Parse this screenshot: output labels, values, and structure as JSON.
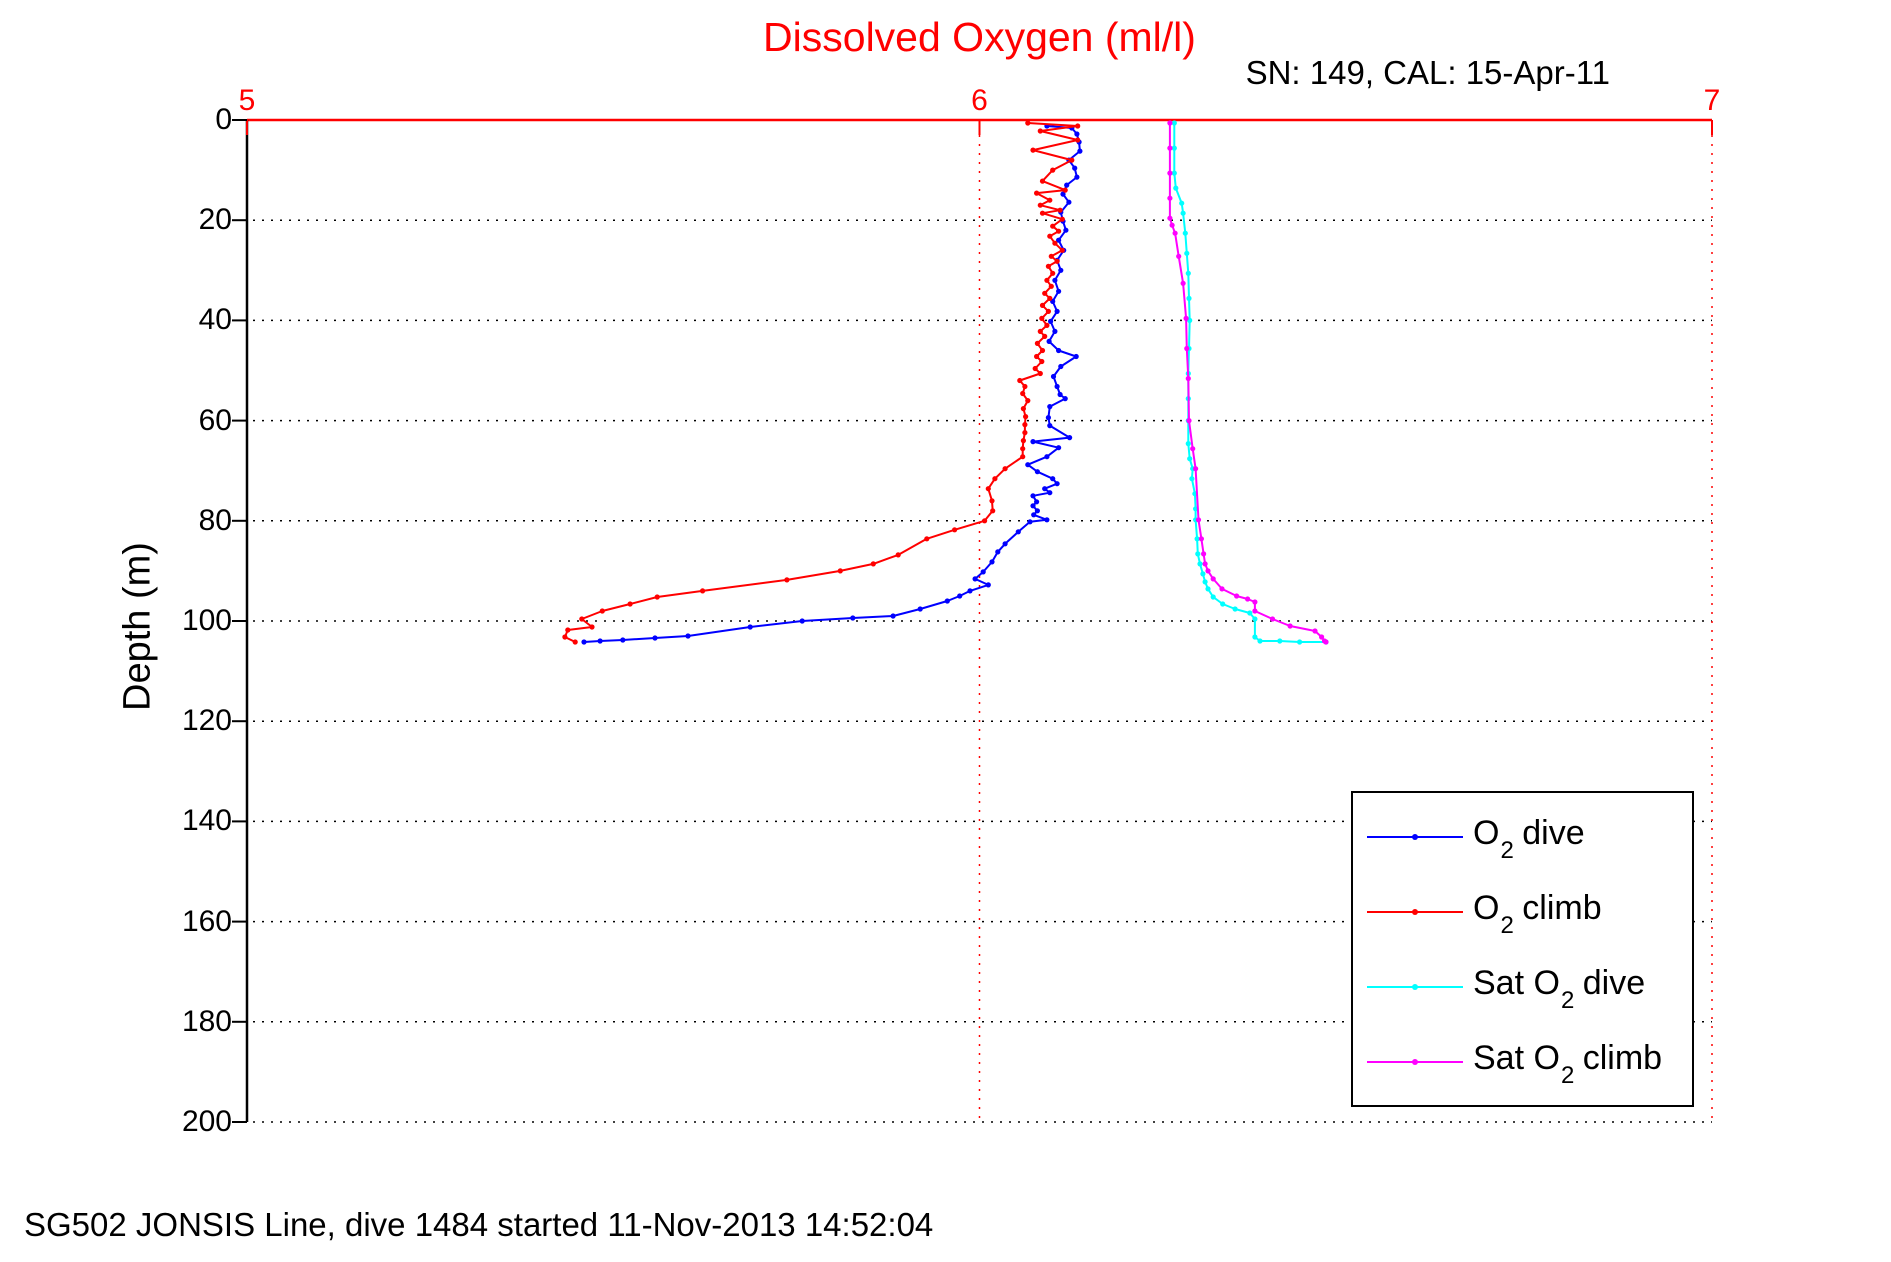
{
  "figure": {
    "title": "Dissolved Oxygen (ml/l)",
    "subtitle": "SN: 149, CAL: 15-Apr-11",
    "footer": "SG502 JONSIS Line, dive 1484 started 11-Nov-2013 14:52:04",
    "title_color": "#ff0000",
    "background": "#ffffff"
  },
  "chart_data": {
    "type": "line",
    "title": "Dissolved Oxygen (ml/l)",
    "subtitle": "SN: 149, CAL: 15-Apr-11",
    "footer": "SG502 JONSIS Line, dive 1484 started 11-Nov-2013 14:52:04",
    "xlabel": "Dissolved Oxygen (ml/l)",
    "ylabel": "Depth (m)",
    "x_axis": {
      "min": 5,
      "max": 7,
      "ticks": [
        "5",
        "6",
        "7"
      ],
      "tick_values": [
        5,
        6,
        7
      ],
      "position": "top",
      "color": "#ff0000",
      "grid": "dotted"
    },
    "y_axis": {
      "min": 0,
      "max": 200,
      "ticks": [
        "0",
        "20",
        "40",
        "60",
        "80",
        "100",
        "120",
        "140",
        "160",
        "180",
        "200"
      ],
      "tick_values": [
        0,
        20,
        40,
        60,
        80,
        100,
        120,
        140,
        160,
        180,
        200
      ],
      "direction": "down",
      "position": "left",
      "color": "#000000",
      "grid": "dotted"
    },
    "legend_position": "bottom-right",
    "series": [
      {
        "name": "O2 dive",
        "color": "#0000ff",
        "marker": "dot",
        "points": [
          [
            6.092,
            1.2
          ],
          [
            6.126,
            1.6
          ],
          [
            6.133,
            2.8
          ],
          [
            6.136,
            4.4
          ],
          [
            6.137,
            6.2
          ],
          [
            6.122,
            8.0
          ],
          [
            6.13,
            9.6
          ],
          [
            6.133,
            11.4
          ],
          [
            6.119,
            13.0
          ],
          [
            6.114,
            14.8
          ],
          [
            6.122,
            16.4
          ],
          [
            6.111,
            18.4
          ],
          [
            6.114,
            20.2
          ],
          [
            6.118,
            22.0
          ],
          [
            6.108,
            24.0
          ],
          [
            6.115,
            26.0
          ],
          [
            6.106,
            28.0
          ],
          [
            6.111,
            30.0
          ],
          [
            6.103,
            32.0
          ],
          [
            6.108,
            34.2
          ],
          [
            6.1,
            36.2
          ],
          [
            6.106,
            38.2
          ],
          [
            6.097,
            40.2
          ],
          [
            6.103,
            42.2
          ],
          [
            6.095,
            44.2
          ],
          [
            6.108,
            46.0
          ],
          [
            6.132,
            47.2
          ],
          [
            6.111,
            49.2
          ],
          [
            6.101,
            51.2
          ],
          [
            6.106,
            53.2
          ],
          [
            6.11,
            54.8
          ],
          [
            6.117,
            55.6
          ],
          [
            6.096,
            57.2
          ],
          [
            6.094,
            59.4
          ],
          [
            6.096,
            61.0
          ],
          [
            6.123,
            63.4
          ],
          [
            6.073,
            64.2
          ],
          [
            6.108,
            65.4
          ],
          [
            6.092,
            67.2
          ],
          [
            6.066,
            68.8
          ],
          [
            6.079,
            70.2
          ],
          [
            6.1,
            71.6
          ],
          [
            6.106,
            72.6
          ],
          [
            6.089,
            73.6
          ],
          [
            6.096,
            74.4
          ],
          [
            6.073,
            75.0
          ],
          [
            6.078,
            76.2
          ],
          [
            6.073,
            77.0
          ],
          [
            6.079,
            78.0
          ],
          [
            6.074,
            78.8
          ],
          [
            6.092,
            79.8
          ],
          [
            6.069,
            80.2
          ],
          [
            6.053,
            82.2
          ],
          [
            6.035,
            84.6
          ],
          [
            6.025,
            86.2
          ],
          [
            6.017,
            88.2
          ],
          [
            6.005,
            90.2
          ],
          [
            5.994,
            91.6
          ],
          [
            6.012,
            92.8
          ],
          [
            5.987,
            94.0
          ],
          [
            5.973,
            95.0
          ],
          [
            5.956,
            96.0
          ],
          [
            5.919,
            97.6
          ],
          [
            5.882,
            99.0
          ],
          [
            5.827,
            99.4
          ],
          [
            5.758,
            100.0
          ],
          [
            5.687,
            101.2
          ],
          [
            5.602,
            103.0
          ],
          [
            5.557,
            103.4
          ],
          [
            5.513,
            103.8
          ],
          [
            5.482,
            104.0
          ],
          [
            5.46,
            104.2
          ]
        ]
      },
      {
        "name": "O2 climb",
        "color": "#ff0000",
        "marker": "dot",
        "points": [
          [
            6.066,
            0.6
          ],
          [
            6.134,
            1.2
          ],
          [
            6.083,
            2.2
          ],
          [
            6.134,
            4.0
          ],
          [
            6.073,
            6.0
          ],
          [
            6.126,
            8.0
          ],
          [
            6.1,
            10.0
          ],
          [
            6.086,
            12.2
          ],
          [
            6.117,
            14.0
          ],
          [
            6.078,
            14.6
          ],
          [
            6.096,
            16.0
          ],
          [
            6.083,
            17.0
          ],
          [
            6.11,
            18.0
          ],
          [
            6.086,
            18.6
          ],
          [
            6.113,
            19.8
          ],
          [
            6.1,
            21.2
          ],
          [
            6.108,
            22.2
          ],
          [
            6.096,
            23.2
          ],
          [
            6.103,
            24.6
          ],
          [
            6.113,
            26.0
          ],
          [
            6.098,
            27.2
          ],
          [
            6.106,
            28.2
          ],
          [
            6.094,
            29.2
          ],
          [
            6.1,
            30.6
          ],
          [
            6.092,
            32.0
          ],
          [
            6.098,
            33.2
          ],
          [
            6.089,
            34.6
          ],
          [
            6.096,
            35.6
          ],
          [
            6.086,
            37.0
          ],
          [
            6.094,
            38.2
          ],
          [
            6.085,
            39.6
          ],
          [
            6.092,
            41.0
          ],
          [
            6.083,
            42.2
          ],
          [
            6.089,
            43.2
          ],
          [
            6.079,
            44.6
          ],
          [
            6.086,
            46.0
          ],
          [
            6.078,
            47.2
          ],
          [
            6.085,
            48.2
          ],
          [
            6.076,
            49.6
          ],
          [
            6.083,
            50.6
          ],
          [
            6.055,
            52.0
          ],
          [
            6.062,
            53.2
          ],
          [
            6.059,
            54.6
          ],
          [
            6.066,
            56.0
          ],
          [
            6.06,
            57.6
          ],
          [
            6.063,
            59.2
          ],
          [
            6.062,
            60.8
          ],
          [
            6.062,
            62.4
          ],
          [
            6.06,
            64.0
          ],
          [
            6.059,
            65.6
          ],
          [
            6.059,
            67.2
          ],
          [
            6.035,
            69.6
          ],
          [
            6.021,
            71.6
          ],
          [
            6.012,
            73.6
          ],
          [
            6.017,
            76.0
          ],
          [
            6.018,
            78.0
          ],
          [
            6.007,
            80.0
          ],
          [
            5.966,
            81.8
          ],
          [
            5.928,
            83.6
          ],
          [
            5.889,
            86.8
          ],
          [
            5.855,
            88.6
          ],
          [
            5.81,
            90.0
          ],
          [
            5.737,
            91.8
          ],
          [
            5.622,
            94.0
          ],
          [
            5.56,
            95.2
          ],
          [
            5.523,
            96.6
          ],
          [
            5.485,
            98.0
          ],
          [
            5.457,
            99.6
          ],
          [
            5.471,
            101.2
          ],
          [
            5.438,
            101.8
          ],
          [
            5.434,
            103.2
          ],
          [
            5.448,
            104.2
          ]
        ]
      },
      {
        "name": "Sat O2 dive",
        "color": "#00ffff",
        "marker": "dot",
        "points": [
          [
            6.266,
            0.6
          ],
          [
            6.266,
            5.6
          ],
          [
            6.266,
            10.6
          ],
          [
            6.268,
            13.6
          ],
          [
            6.276,
            16.6
          ],
          [
            6.278,
            18.6
          ],
          [
            6.281,
            22.6
          ],
          [
            6.283,
            26.6
          ],
          [
            6.285,
            30.6
          ],
          [
            6.286,
            35.6
          ],
          [
            6.287,
            40.0
          ],
          [
            6.286,
            45.6
          ],
          [
            6.285,
            50.6
          ],
          [
            6.285,
            55.6
          ],
          [
            6.285,
            60.0
          ],
          [
            6.285,
            64.6
          ],
          [
            6.287,
            67.6
          ],
          [
            6.291,
            69.6
          ],
          [
            6.29,
            71.6
          ],
          [
            6.294,
            74.6
          ],
          [
            6.295,
            77.6
          ],
          [
            6.295,
            79.8
          ],
          [
            6.297,
            83.6
          ],
          [
            6.298,
            86.6
          ],
          [
            6.301,
            88.6
          ],
          [
            6.305,
            90.6
          ],
          [
            6.308,
            92.2
          ],
          [
            6.312,
            93.6
          ],
          [
            6.319,
            95.2
          ],
          [
            6.332,
            96.6
          ],
          [
            6.349,
            97.6
          ],
          [
            6.369,
            98.4
          ],
          [
            6.376,
            99.6
          ],
          [
            6.376,
            103.2
          ],
          [
            6.383,
            104.0
          ],
          [
            6.41,
            104.0
          ],
          [
            6.437,
            104.2
          ],
          [
            6.473,
            104.2
          ]
        ]
      },
      {
        "name": "Sat O2 climb",
        "color": "#ff00ff",
        "marker": "dot",
        "points": [
          [
            6.26,
            0.6
          ],
          [
            6.26,
            5.6
          ],
          [
            6.26,
            10.6
          ],
          [
            6.26,
            15.6
          ],
          [
            6.26,
            19.6
          ],
          [
            6.263,
            21.0
          ],
          [
            6.267,
            22.6
          ],
          [
            6.272,
            27.2
          ],
          [
            6.278,
            32.6
          ],
          [
            6.282,
            39.6
          ],
          [
            6.283,
            45.6
          ],
          [
            6.285,
            51.6
          ],
          [
            6.286,
            60.0
          ],
          [
            6.291,
            65.6
          ],
          [
            6.295,
            69.6
          ],
          [
            6.299,
            79.8
          ],
          [
            6.303,
            83.6
          ],
          [
            6.306,
            86.6
          ],
          [
            6.308,
            88.6
          ],
          [
            6.312,
            90.0
          ],
          [
            6.319,
            91.6
          ],
          [
            6.331,
            93.6
          ],
          [
            6.351,
            95.0
          ],
          [
            6.366,
            95.6
          ],
          [
            6.376,
            96.2
          ],
          [
            6.376,
            98.0
          ],
          [
            6.4,
            99.6
          ],
          [
            6.424,
            101.0
          ],
          [
            6.458,
            102.0
          ],
          [
            6.467,
            103.2
          ],
          [
            6.471,
            104.0
          ],
          [
            6.473,
            104.2
          ]
        ]
      }
    ]
  },
  "legend": {
    "entries": [
      {
        "pre": "O",
        "sub": "2",
        "post": " dive",
        "color": "#0000ff"
      },
      {
        "pre": "O",
        "sub": "2",
        "post": " climb",
        "color": "#ff0000"
      },
      {
        "pre": "Sat O",
        "sub": "2",
        "post": " dive",
        "color": "#00ffff"
      },
      {
        "pre": "Sat O",
        "sub": "2",
        "post": " climb",
        "color": "#ff00ff"
      }
    ]
  }
}
